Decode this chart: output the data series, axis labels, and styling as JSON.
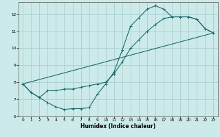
{
  "xlabel": "Humidex (Indice chaleur)",
  "ylabel": "",
  "bg_color": "#cceaea",
  "line_color": "#1a6b6b",
  "grid_color": "#aacfcf",
  "xlim": [
    -0.5,
    23.5
  ],
  "ylim": [
    6,
    12.7
  ],
  "xticks": [
    0,
    1,
    2,
    3,
    4,
    5,
    6,
    7,
    8,
    9,
    10,
    11,
    12,
    13,
    14,
    15,
    16,
    17,
    18,
    19,
    20,
    21,
    22,
    23
  ],
  "yticks": [
    6,
    7,
    8,
    9,
    10,
    11,
    12
  ],
  "line1_x": [
    0,
    1,
    2,
    3,
    4,
    5,
    6,
    7,
    8,
    9,
    10,
    11,
    12,
    13,
    14,
    15,
    16,
    17,
    18,
    19,
    20,
    21,
    22,
    23
  ],
  "line1_y": [
    7.9,
    7.4,
    7.1,
    6.8,
    6.55,
    6.4,
    6.45,
    6.45,
    6.5,
    7.3,
    7.9,
    8.6,
    9.9,
    11.3,
    11.8,
    12.3,
    12.5,
    12.3,
    11.85,
    11.85,
    11.85,
    11.7,
    11.15,
    10.9
  ],
  "line2_x": [
    0,
    1,
    2,
    3,
    4,
    5,
    6,
    7,
    8,
    9,
    10,
    11,
    12,
    13,
    14,
    15,
    16,
    17,
    18,
    19,
    20,
    21,
    22,
    23
  ],
  "line2_y": [
    7.9,
    7.4,
    7.1,
    7.5,
    7.5,
    7.6,
    7.6,
    7.7,
    7.8,
    7.9,
    8.0,
    8.5,
    9.2,
    10.0,
    10.5,
    11.0,
    11.4,
    11.75,
    11.85,
    11.85,
    11.85,
    11.7,
    11.15,
    10.9
  ],
  "line3_x": [
    0,
    23
  ],
  "line3_y": [
    7.9,
    10.9
  ]
}
